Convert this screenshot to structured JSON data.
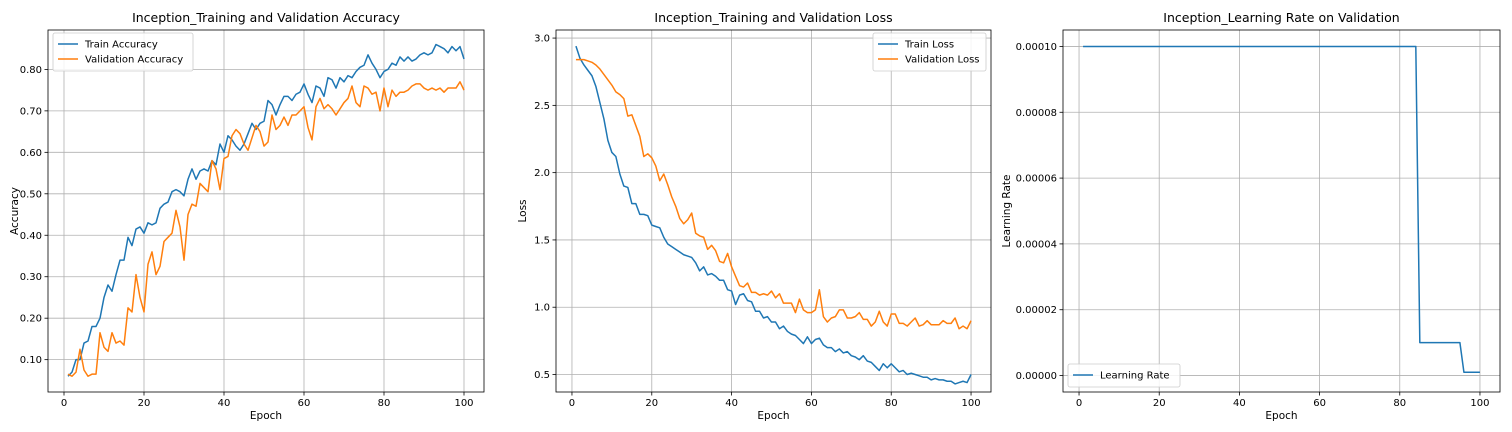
{
  "chart_data": [
    {
      "type": "line",
      "title": "Inception_Training and Validation Accuracy",
      "xlabel": "Epoch",
      "ylabel": "Accuracy",
      "xlim": [
        -4,
        105
      ],
      "ylim": [
        0.022,
        0.895
      ],
      "xticks": [
        0,
        20,
        40,
        60,
        80,
        100
      ],
      "yticks": [
        0.1,
        0.2,
        0.3,
        0.4,
        0.5,
        0.6,
        0.7,
        0.8
      ],
      "grid": true,
      "legend_position": "upper left",
      "series": [
        {
          "name": "Train Accuracy",
          "color": "#1f77b4",
          "x": [
            1,
            2,
            3,
            4,
            5,
            6,
            7,
            8,
            9,
            10,
            11,
            12,
            13,
            14,
            15,
            16,
            17,
            18,
            19,
            20,
            21,
            22,
            23,
            24,
            25,
            26,
            27,
            28,
            29,
            30,
            31,
            32,
            33,
            34,
            35,
            36,
            37,
            38,
            39,
            40,
            41,
            42,
            43,
            44,
            45,
            46,
            47,
            48,
            49,
            50,
            51,
            52,
            53,
            54,
            55,
            56,
            57,
            58,
            59,
            60,
            61,
            62,
            63,
            64,
            65,
            66,
            67,
            68,
            69,
            70,
            71,
            72,
            73,
            74,
            75,
            76,
            77,
            78,
            79,
            80,
            81,
            82,
            83,
            84,
            85,
            86,
            87,
            88,
            89,
            90,
            91,
            92,
            93,
            94,
            95,
            96,
            97,
            98,
            99,
            100
          ],
          "values": [
            0.06,
            0.07,
            0.1,
            0.1,
            0.14,
            0.145,
            0.18,
            0.18,
            0.2,
            0.25,
            0.28,
            0.265,
            0.305,
            0.34,
            0.34,
            0.395,
            0.375,
            0.415,
            0.42,
            0.405,
            0.43,
            0.425,
            0.43,
            0.465,
            0.475,
            0.48,
            0.505,
            0.51,
            0.505,
            0.495,
            0.535,
            0.56,
            0.535,
            0.555,
            0.56,
            0.555,
            0.58,
            0.57,
            0.62,
            0.6,
            0.64,
            0.63,
            0.615,
            0.605,
            0.62,
            0.645,
            0.67,
            0.655,
            0.67,
            0.675,
            0.725,
            0.715,
            0.69,
            0.715,
            0.735,
            0.735,
            0.725,
            0.74,
            0.745,
            0.765,
            0.74,
            0.72,
            0.76,
            0.755,
            0.735,
            0.78,
            0.775,
            0.755,
            0.78,
            0.77,
            0.785,
            0.78,
            0.795,
            0.805,
            0.81,
            0.835,
            0.815,
            0.8,
            0.78,
            0.795,
            0.8,
            0.815,
            0.81,
            0.83,
            0.82,
            0.83,
            0.82,
            0.825,
            0.835,
            0.84,
            0.835,
            0.84,
            0.86,
            0.855,
            0.85,
            0.84,
            0.855,
            0.845,
            0.855,
            0.825
          ]
        },
        {
          "name": "Validation Accuracy",
          "color": "#ff7f0e",
          "x": [
            1,
            2,
            3,
            4,
            5,
            6,
            7,
            8,
            9,
            10,
            11,
            12,
            13,
            14,
            15,
            16,
            17,
            18,
            19,
            20,
            21,
            22,
            23,
            24,
            25,
            26,
            27,
            28,
            29,
            30,
            31,
            32,
            33,
            34,
            35,
            36,
            37,
            38,
            39,
            40,
            41,
            42,
            43,
            44,
            45,
            46,
            47,
            48,
            49,
            50,
            51,
            52,
            53,
            54,
            55,
            56,
            57,
            58,
            59,
            60,
            61,
            62,
            63,
            64,
            65,
            66,
            67,
            68,
            69,
            70,
            71,
            72,
            73,
            74,
            75,
            76,
            77,
            78,
            79,
            80,
            81,
            82,
            83,
            84,
            85,
            86,
            87,
            88,
            89,
            90,
            91,
            92,
            93,
            94,
            95,
            96,
            97,
            98,
            99,
            100
          ],
          "values": [
            0.065,
            0.06,
            0.07,
            0.125,
            0.075,
            0.06,
            0.065,
            0.065,
            0.165,
            0.13,
            0.12,
            0.165,
            0.14,
            0.145,
            0.135,
            0.225,
            0.215,
            0.305,
            0.25,
            0.215,
            0.33,
            0.36,
            0.305,
            0.325,
            0.385,
            0.395,
            0.405,
            0.46,
            0.42,
            0.34,
            0.45,
            0.475,
            0.47,
            0.525,
            0.515,
            0.505,
            0.58,
            0.56,
            0.51,
            0.585,
            0.59,
            0.64,
            0.655,
            0.645,
            0.62,
            0.605,
            0.635,
            0.665,
            0.65,
            0.615,
            0.625,
            0.69,
            0.655,
            0.665,
            0.685,
            0.665,
            0.69,
            0.69,
            0.7,
            0.71,
            0.66,
            0.63,
            0.71,
            0.73,
            0.705,
            0.715,
            0.705,
            0.69,
            0.705,
            0.72,
            0.73,
            0.76,
            0.72,
            0.71,
            0.76,
            0.755,
            0.74,
            0.745,
            0.7,
            0.755,
            0.71,
            0.75,
            0.735,
            0.745,
            0.745,
            0.75,
            0.76,
            0.765,
            0.765,
            0.755,
            0.75,
            0.755,
            0.75,
            0.755,
            0.745,
            0.755,
            0.755,
            0.755,
            0.77,
            0.75
          ]
        }
      ]
    },
    {
      "type": "line",
      "title": "Inception_Training and Validation Loss",
      "xlabel": "Epoch",
      "ylabel": "Loss",
      "xlim": [
        -4,
        105
      ],
      "ylim": [
        0.37,
        3.06
      ],
      "xticks": [
        0,
        20,
        40,
        60,
        80,
        100
      ],
      "yticks": [
        0.5,
        1.0,
        1.5,
        2.0,
        2.5,
        3.0
      ],
      "grid": true,
      "legend_position": "upper right",
      "series": [
        {
          "name": "Train Loss",
          "color": "#1f77b4",
          "x": [
            1,
            2,
            3,
            4,
            5,
            6,
            7,
            8,
            9,
            10,
            11,
            12,
            13,
            14,
            15,
            16,
            17,
            18,
            19,
            20,
            21,
            22,
            23,
            24,
            25,
            26,
            27,
            28,
            29,
            30,
            31,
            32,
            33,
            34,
            35,
            36,
            37,
            38,
            39,
            40,
            41,
            42,
            43,
            44,
            45,
            46,
            47,
            48,
            49,
            50,
            51,
            52,
            53,
            54,
            55,
            56,
            57,
            58,
            59,
            60,
            61,
            62,
            63,
            64,
            65,
            66,
            67,
            68,
            69,
            70,
            71,
            72,
            73,
            74,
            75,
            76,
            77,
            78,
            79,
            80,
            81,
            82,
            83,
            84,
            85,
            86,
            87,
            88,
            89,
            90,
            91,
            92,
            93,
            94,
            95,
            96,
            97,
            98,
            99,
            100
          ],
          "values": [
            2.94,
            2.85,
            2.8,
            2.76,
            2.72,
            2.64,
            2.52,
            2.4,
            2.24,
            2.15,
            2.12,
            1.99,
            1.9,
            1.89,
            1.77,
            1.77,
            1.69,
            1.69,
            1.68,
            1.61,
            1.6,
            1.59,
            1.52,
            1.47,
            1.45,
            1.43,
            1.41,
            1.39,
            1.38,
            1.37,
            1.33,
            1.27,
            1.3,
            1.24,
            1.25,
            1.23,
            1.2,
            1.2,
            1.13,
            1.12,
            1.02,
            1.09,
            1.1,
            1.05,
            1.04,
            0.97,
            0.97,
            0.92,
            0.93,
            0.89,
            0.89,
            0.84,
            0.86,
            0.82,
            0.8,
            0.79,
            0.76,
            0.73,
            0.78,
            0.73,
            0.76,
            0.77,
            0.72,
            0.7,
            0.7,
            0.67,
            0.69,
            0.66,
            0.67,
            0.64,
            0.63,
            0.61,
            0.64,
            0.6,
            0.59,
            0.56,
            0.53,
            0.58,
            0.55,
            0.58,
            0.55,
            0.52,
            0.53,
            0.5,
            0.51,
            0.5,
            0.49,
            0.48,
            0.48,
            0.46,
            0.47,
            0.46,
            0.46,
            0.45,
            0.45,
            0.43,
            0.44,
            0.45,
            0.44,
            0.5
          ]
        },
        {
          "name": "Validation Loss",
          "color": "#ff7f0e",
          "x": [
            1,
            2,
            3,
            4,
            5,
            6,
            7,
            8,
            9,
            10,
            11,
            12,
            13,
            14,
            15,
            16,
            17,
            18,
            19,
            20,
            21,
            22,
            23,
            24,
            25,
            26,
            27,
            28,
            29,
            30,
            31,
            32,
            33,
            34,
            35,
            36,
            37,
            38,
            39,
            40,
            41,
            42,
            43,
            44,
            45,
            46,
            47,
            48,
            49,
            50,
            51,
            52,
            53,
            54,
            55,
            56,
            57,
            58,
            59,
            60,
            61,
            62,
            63,
            64,
            65,
            66,
            67,
            68,
            69,
            70,
            71,
            72,
            73,
            74,
            75,
            76,
            77,
            78,
            79,
            80,
            81,
            82,
            83,
            84,
            85,
            86,
            87,
            88,
            89,
            90,
            91,
            92,
            93,
            94,
            95,
            96,
            97,
            98,
            99,
            100
          ],
          "values": [
            2.84,
            2.84,
            2.84,
            2.83,
            2.82,
            2.8,
            2.77,
            2.73,
            2.69,
            2.65,
            2.6,
            2.58,
            2.55,
            2.42,
            2.43,
            2.35,
            2.27,
            2.12,
            2.14,
            2.11,
            2.05,
            1.94,
            1.99,
            1.91,
            1.82,
            1.75,
            1.66,
            1.62,
            1.65,
            1.7,
            1.55,
            1.53,
            1.52,
            1.43,
            1.46,
            1.42,
            1.34,
            1.33,
            1.4,
            1.3,
            1.23,
            1.16,
            1.15,
            1.18,
            1.11,
            1.11,
            1.09,
            1.1,
            1.09,
            1.12,
            1.07,
            1.1,
            1.03,
            1.03,
            1.03,
            0.96,
            1.06,
            0.98,
            0.96,
            0.96,
            0.98,
            1.13,
            0.93,
            0.89,
            0.92,
            0.93,
            0.98,
            0.98,
            0.92,
            0.92,
            0.93,
            0.96,
            0.91,
            0.91,
            0.86,
            0.89,
            0.97,
            0.89,
            0.86,
            0.95,
            0.95,
            0.88,
            0.88,
            0.86,
            0.89,
            0.92,
            0.86,
            0.87,
            0.9,
            0.87,
            0.87,
            0.87,
            0.9,
            0.88,
            0.88,
            0.92,
            0.84,
            0.86,
            0.84,
            0.9
          ]
        }
      ]
    },
    {
      "type": "line",
      "title": "Inception_Learning Rate on Validation",
      "xlabel": "Epoch",
      "ylabel": "Learning Rate",
      "xlim": [
        -4,
        105
      ],
      "ylim": [
        -5e-06,
        0.000105
      ],
      "xticks": [
        0,
        20,
        40,
        60,
        80,
        100
      ],
      "yticks": [
        0,
        2e-05,
        4e-05,
        6e-05,
        8e-05,
        0.0001
      ],
      "ytick_labels": [
        "0.00000",
        "0.00002",
        "0.00004",
        "0.00006",
        "0.00008",
        "0.00010"
      ],
      "grid": true,
      "legend_position": "lower left",
      "series": [
        {
          "name": "Learning Rate",
          "color": "#1f77b4",
          "x": [
            1,
            84,
            85,
            95,
            96,
            100
          ],
          "values": [
            0.0001,
            0.0001,
            1e-05,
            1e-05,
            1e-06,
            1e-06
          ]
        }
      ]
    }
  ]
}
